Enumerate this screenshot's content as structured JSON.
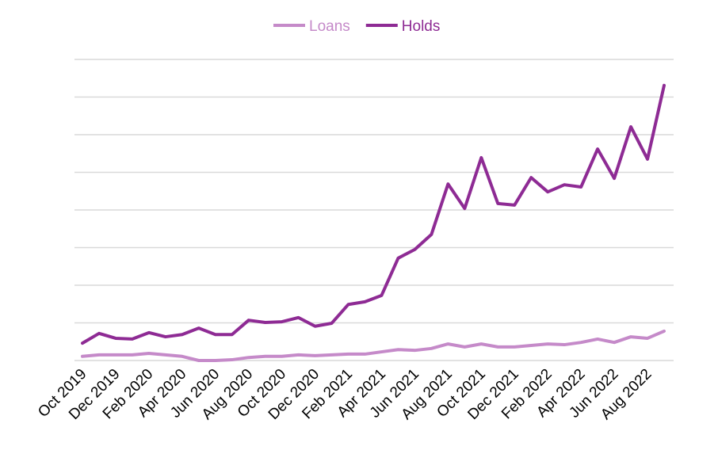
{
  "chart_data": {
    "type": "line",
    "categories": [
      "Oct 2019",
      null,
      "Dec 2019",
      null,
      "Feb 2020",
      null,
      "Apr 2020",
      null,
      "Jun 2020",
      null,
      "Aug 2020",
      null,
      "Oct 2020",
      null,
      "Dec 2020",
      null,
      "Feb 2021",
      null,
      "Apr 2021",
      null,
      "Jun 2021",
      null,
      "Aug 2021",
      null,
      "Oct 2021",
      null,
      "Dec 2021",
      null,
      "Feb 2022",
      null,
      "Apr 2022",
      null,
      "Jun 2022",
      null,
      "Aug 2022",
      null
    ],
    "series": [
      {
        "name": "Loans",
        "color": "#c58ac9",
        "values": [
          0.11,
          0.15,
          0.15,
          0.15,
          0.19,
          0.15,
          0.11,
          0,
          0,
          0.02,
          0.08,
          0.11,
          0.11,
          0.15,
          0.13,
          0.15,
          0.17,
          0.17,
          0.23,
          0.29,
          0.27,
          0.32,
          0.44,
          0.36,
          0.44,
          0.36,
          0.36,
          0.4,
          0.44,
          0.42,
          0.48,
          0.57,
          0.48,
          0.63,
          0.59,
          0.78
        ]
      },
      {
        "name": "Holds",
        "color": "#8e2b94",
        "values": [
          0.46,
          0.72,
          0.59,
          0.57,
          0.74,
          0.63,
          0.69,
          0.86,
          0.69,
          0.69,
          1.07,
          1.01,
          1.03,
          1.14,
          0.91,
          0.99,
          1.49,
          1.56,
          1.73,
          2.72,
          2.95,
          3.35,
          4.69,
          4.04,
          5.39,
          4.17,
          4.13,
          4.86,
          4.48,
          4.67,
          4.61,
          5.62,
          4.84,
          6.21,
          5.35,
          7.31
        ]
      }
    ],
    "ylim": [
      0,
      8
    ],
    "yticks": [
      0,
      1,
      2,
      3,
      4,
      5,
      6,
      7,
      8
    ],
    "ytick_labels": false,
    "grid": true,
    "legend": "top"
  }
}
